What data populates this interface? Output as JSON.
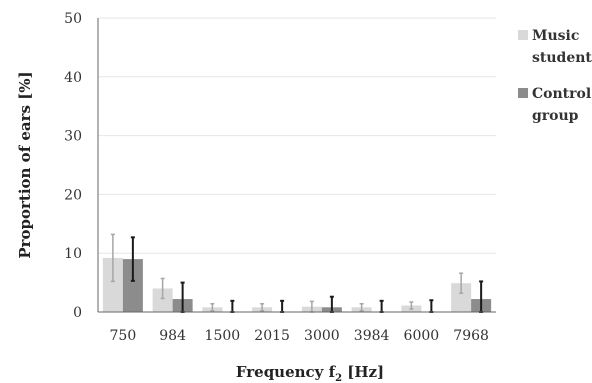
{
  "chart_data": {
    "type": "bar",
    "categories": [
      "750",
      "984",
      "1500",
      "2015",
      "3000",
      "3984",
      "6000",
      "7968"
    ],
    "series": [
      {
        "name": "Music students",
        "values": [
          9.2,
          4.0,
          0.8,
          0.8,
          0.9,
          0.8,
          1.1,
          4.9
        ],
        "error": [
          4.0,
          1.7,
          0.6,
          0.6,
          0.9,
          0.6,
          0.6,
          1.7
        ],
        "color": "#d9d9d9",
        "error_color": "#a6a6a6"
      },
      {
        "name": "Control group",
        "values": [
          9.0,
          2.2,
          0.0,
          0.0,
          0.8,
          0.0,
          0.0,
          2.2
        ],
        "error": [
          3.7,
          2.8,
          1.9,
          1.9,
          1.8,
          1.9,
          2.0,
          3.0
        ],
        "color": "#8c8c8c",
        "error_color": "#1a1a1a"
      }
    ],
    "xlabel": "Frequency f2 [Hz]",
    "ylabel": "Proportion of ears [%]",
    "ylim": [
      0,
      50
    ],
    "yticks": [
      "0",
      "10",
      "20",
      "30",
      "40",
      "50"
    ],
    "grid": true,
    "legend": "right"
  }
}
